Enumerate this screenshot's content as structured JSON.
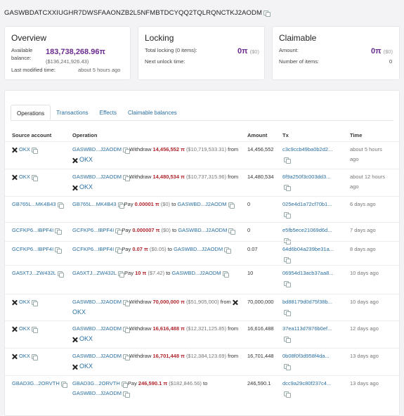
{
  "header": {
    "account_id": "GASWBDATCXXIUGHR7DWSFAAONZB2L5NFMBTDCYQQ2TQLRQNCTKJ2AODM"
  },
  "overview": {
    "title": "Overview",
    "available_balance_label_1": "Available",
    "available_balance_label_2": "balance:",
    "balance": "183,738,268.96π",
    "balance_usd": "($136,241,926.43)",
    "last_modified_label": "Last modified time:",
    "last_modified_value": "about 5 hours ago"
  },
  "locking": {
    "title": "Locking",
    "total_label": "Total locking (0 items):",
    "total_value": "0π",
    "total_usd": "($0)",
    "next_unlock_label": "Next unlock time:"
  },
  "claimable": {
    "title": "Claimable",
    "amount_label": "Amount:",
    "amount_value": "0π",
    "amount_usd": "($0)",
    "items_label": "Number of items:",
    "items_value": "0"
  },
  "tabs": [
    "Operations",
    "Transactions",
    "Effects",
    "Claimable balances"
  ],
  "columns": {
    "source": "Source account",
    "operation": "Operation",
    "amount": "Amount",
    "tx": "Tx",
    "time": "Time"
  },
  "rows": [
    {
      "source": "OKX",
      "op_from": "GASWBD...J2AODM",
      "op_verb": "Withdraw",
      "op_amount": "14,456,552 π",
      "op_usd": "($10,719,533.31)",
      "op_prep": "from",
      "op_to": "OKX",
      "amount": "14,456,552",
      "tx": "c3c9ccb49ba0b2d2...",
      "time1": "about 5 hours",
      "time2": "ago"
    },
    {
      "source": "OKX",
      "op_from": "GASWBD...J2AODM",
      "op_verb": "Withdraw",
      "op_amount": "14,480,534 π",
      "op_usd": "($10,737,315.96)",
      "op_prep": "from",
      "op_to": "OKX",
      "amount": "14,480,534",
      "tx": "6f9a250f3c003dd3...",
      "time1": "about 12 hours",
      "time2": "ago"
    },
    {
      "source": "GB765L...MK4B43",
      "op_from": "GB765L...MK4B43",
      "op_verb": "Pay",
      "op_amount": "0.00001 π",
      "op_usd": "($0)",
      "op_prep": "to",
      "op_to": "GASWBD...J2AODM",
      "amount": "0",
      "tx": "025e4d1a72cf70b1...",
      "time1": "6 days ago",
      "time2": ""
    },
    {
      "source": "GCFKP6...IBPF4I",
      "op_from": "GCFKP6...IBPF4I",
      "op_verb": "Pay",
      "op_amount": "0.000007 π",
      "op_usd": "($0)",
      "op_prep": "to",
      "op_to": "GASWBD...J2AODM",
      "amount": "0",
      "tx": "e5fb5ece21069d6d...",
      "time1": "7 days ago",
      "time2": ""
    },
    {
      "source": "GCFKP6...IBPF4I",
      "op_from": "GCFKP6...IBPF4I",
      "op_verb": "Pay",
      "op_amount": "0.07 π",
      "op_usd": "($0.05)",
      "op_prep": "to",
      "op_to": "GASWBD...J2AODM",
      "amount": "0.07",
      "tx": "64d6b04a239be31a...",
      "time1": "8 days ago",
      "time2": ""
    },
    {
      "source": "GA5XTJ...ZW432L",
      "op_from": "GA5XTJ...ZW432L",
      "op_verb": "Pay",
      "op_amount": "10 π",
      "op_usd": "($7.42)",
      "op_prep": "to",
      "op_to": "GASWBD...J2AODM",
      "amount": "10",
      "tx": "06954d13acb37aa8...",
      "time1": "10 days ago",
      "time2": ""
    },
    {
      "source": "OKX",
      "op_from": "GASWBD...J2AODM",
      "op_verb": "Withdraw",
      "op_amount": "70,000,000 π",
      "op_usd": "($51,905,000)",
      "op_prep": "from",
      "op_to": "OKX",
      "amount": "70,000,000",
      "tx": "bd88179d0d75f38b...",
      "time1": "10 days ago",
      "time2": ""
    },
    {
      "source": "OKX",
      "op_from": "GASWBD...J2AODM",
      "op_verb": "Withdraw",
      "op_amount": "16,616,488 π",
      "op_usd": "($12,321,125.85)",
      "op_prep": "from",
      "op_to": "OKX",
      "amount": "16,616,488",
      "tx": "37ea113d7876b0ef...",
      "time1": "12 days ago",
      "time2": ""
    },
    {
      "source": "OKX",
      "op_from": "GASWBD...J2AODM",
      "op_verb": "Withdraw",
      "op_amount": "16,701,448 π",
      "op_usd": "($12,384,123.69)",
      "op_prep": "from",
      "op_to": "OKX",
      "amount": "16,701,448",
      "tx": "0b08f0f3d958f4da...",
      "time1": "13 days ago",
      "time2": ""
    },
    {
      "source": "GBAD3G...2ORVTH",
      "op_from": "GBAD3G...2ORVTH",
      "op_verb": "Pay",
      "op_amount": "246,590.1 π",
      "op_usd": "($182,846.56)",
      "op_prep": "to",
      "op_to": "GASWBD...J2AODM",
      "amount": "246,590.1",
      "tx": "dcc9a29c80f237c4...",
      "time1": "13 days ago",
      "time2": ""
    }
  ],
  "colors": {
    "accent_purple": "#6b2b8f",
    "link_blue": "#2a6fa0",
    "amount_red": "#b0262e"
  }
}
